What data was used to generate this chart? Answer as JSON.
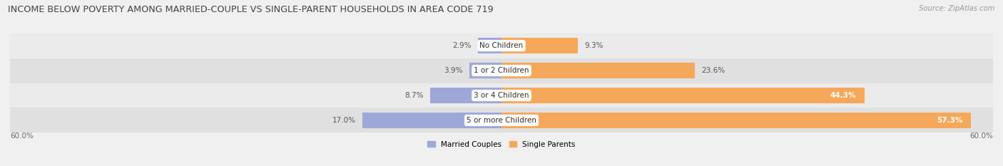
{
  "title": "INCOME BELOW POVERTY AMONG MARRIED-COUPLE VS SINGLE-PARENT HOUSEHOLDS IN AREA CODE 719",
  "source": "Source: ZipAtlas.com",
  "categories": [
    "No Children",
    "1 or 2 Children",
    "3 or 4 Children",
    "5 or more Children"
  ],
  "married_values": [
    2.9,
    3.9,
    8.7,
    17.0
  ],
  "single_values": [
    9.3,
    23.6,
    44.3,
    57.3
  ],
  "axis_max": 60.0,
  "married_color": "#9da8d8",
  "single_color": "#f5a85a",
  "row_bg_colors": [
    "#ebebeb",
    "#e0e0e0"
  ],
  "fig_bg_color": "#f0f0f0",
  "title_fontsize": 9.2,
  "source_fontsize": 7.2,
  "label_fontsize": 7.5,
  "value_label_inside_threshold": 35,
  "legend_married": "Married Couples",
  "legend_single": "Single Parents"
}
